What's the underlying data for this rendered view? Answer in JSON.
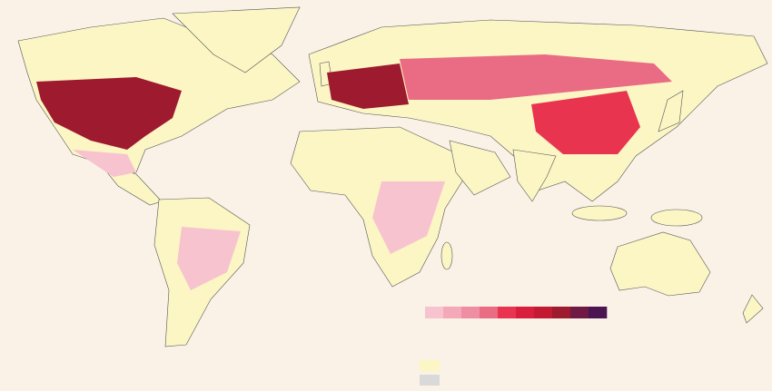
{
  "map": {
    "background": "#faf1e7",
    "land_color": "#fbf6c4",
    "legend": {
      "colors": [
        "#f7c3cf",
        "#f4a9b8",
        "#ef8ea2",
        "#ea6b84",
        "#e8344f",
        "#d81e3c",
        "#c21a33",
        "#9e1a2e",
        "#6e1a44",
        "#4a1550"
      ],
      "extra_colors": [
        "#fbf6c4",
        "#d9d9d9"
      ]
    }
  }
}
